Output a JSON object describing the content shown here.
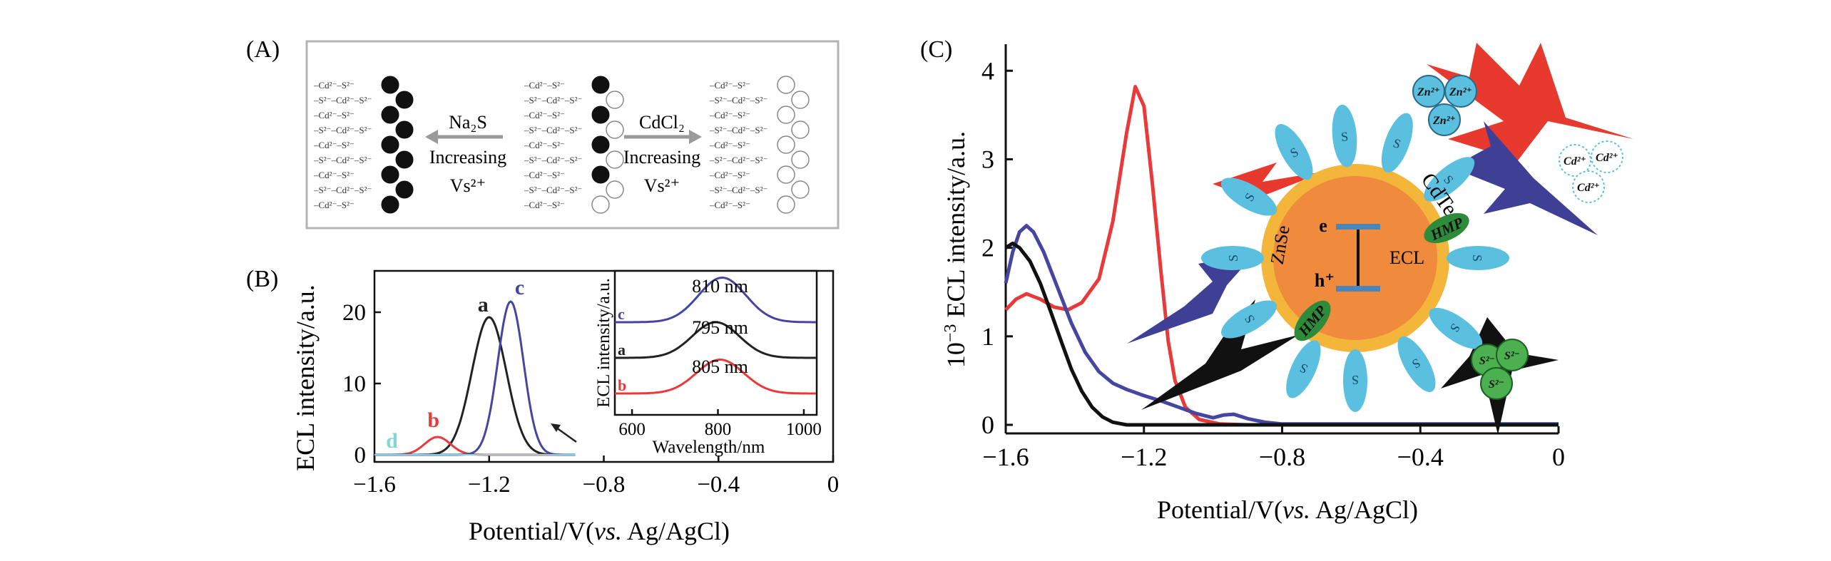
{
  "figure": {
    "panel_labels": [
      "(A)",
      "(B)",
      "(C)"
    ]
  },
  "panelA": {
    "left_reagent": "Na₂S",
    "right_reagent": "CdCl₂",
    "increasing_text": "Increasing",
    "vacancy_text": "Vs²⁺",
    "lattice_rows": [
      "–Cd²⁻–S²⁻",
      "–S²⁻–Cd²⁻–S²⁻",
      "–Cd²⁻–S²⁻",
      "–S²⁻–Cd²⁻–S²⁻",
      "–Cd²⁻–S²⁻",
      "–S²⁻–Cd²⁻–S²⁻",
      "–Cd²⁻–S²⁻",
      "–S²⁻–Cd²⁻–S²⁻",
      "–Cd²⁻–S²⁻"
    ],
    "colors": {
      "frame": "#b3b3b3",
      "arrow": "#9a9a9a",
      "text": "#222222"
    }
  },
  "chart_data": [
    {
      "id": "B-main",
      "type": "line",
      "ylabel": "ECL intensity/a.u.",
      "xlabel_parts": [
        "Potential/V(",
        "vs.",
        " Ag/AgCl)"
      ],
      "xlim": [
        -1.6,
        0
      ],
      "ylim": [
        0,
        25
      ],
      "x_ticks": [
        -1.6,
        -1.2,
        -0.8,
        -0.4,
        0
      ],
      "x_tick_labels": [
        "−1.6",
        "−1.2",
        "−0.8",
        "−0.4",
        "0"
      ],
      "y_ticks": [
        0,
        10,
        20
      ],
      "y_tick_labels": [
        "0",
        "10",
        "20"
      ],
      "series": [
        {
          "name": "a",
          "color": "#222222",
          "peak_x": -1.2,
          "peak_y": 19.3,
          "width": 0.06
        },
        {
          "name": "b",
          "color": "#e83a3a",
          "peak_x": -1.38,
          "peak_y": 2.5,
          "width": 0.045
        },
        {
          "name": "c",
          "color": "#4646a0",
          "peak_x": -1.125,
          "peak_y": 21.5,
          "width": 0.045
        },
        {
          "name": "d",
          "color": "#7fd8d8",
          "peak_x": -1.5,
          "peak_y": 0,
          "width": 0.05
        }
      ],
      "series_labels": [
        "a",
        "b",
        "c",
        "d"
      ]
    },
    {
      "id": "B-inset",
      "type": "line",
      "ylabel": "ECL intensity/a.u.",
      "xlabel": "Wavelength/nm",
      "xlim": [
        560,
        1030
      ],
      "x_ticks": [
        600,
        800,
        1000
      ],
      "x_tick_labels": [
        "600",
        "800",
        "1000"
      ],
      "annotations": [
        "810 nm",
        "795 nm",
        "805 nm"
      ],
      "series": [
        {
          "name": "c",
          "color": "#4646a0",
          "peak_x": 810,
          "offset": 2.0,
          "height": 1.25,
          "width": 55
        },
        {
          "name": "a",
          "color": "#222222",
          "peak_x": 795,
          "offset": 1.0,
          "height": 1.0,
          "width": 55
        },
        {
          "name": "b",
          "color": "#e83a3a",
          "peak_x": 805,
          "offset": 0.0,
          "height": 0.95,
          "width": 55
        }
      ],
      "series_labels": [
        "c",
        "a",
        "b"
      ]
    },
    {
      "id": "C",
      "type": "line",
      "ylabel_parts": [
        "10",
        "−3",
        " ECL intensity/a.u."
      ],
      "xlabel_parts": [
        "Potential/V(",
        "vs.",
        " Ag/AgCl)"
      ],
      "xlim": [
        -1.6,
        0
      ],
      "ylim": [
        0,
        4.3
      ],
      "x_ticks": [
        -1.6,
        -1.2,
        -0.8,
        -0.4,
        0
      ],
      "x_tick_labels": [
        "−1.6",
        "−1.2",
        "−0.8",
        "−0.4",
        "0"
      ],
      "y_ticks": [
        0,
        1,
        2,
        3,
        4
      ],
      "y_tick_labels": [
        "0",
        "1",
        "2",
        "3",
        "4"
      ],
      "series": [
        {
          "name": "red",
          "color": "#e83a3a",
          "points": [
            [
              -1.6,
              1.3
            ],
            [
              -1.57,
              1.42
            ],
            [
              -1.54,
              1.48
            ],
            [
              -1.5,
              1.42
            ],
            [
              -1.46,
              1.33
            ],
            [
              -1.42,
              1.3
            ],
            [
              -1.38,
              1.38
            ],
            [
              -1.33,
              1.65
            ],
            [
              -1.29,
              2.3
            ],
            [
              -1.25,
              3.3
            ],
            [
              -1.225,
              3.82
            ],
            [
              -1.2,
              3.6
            ],
            [
              -1.175,
              2.7
            ],
            [
              -1.15,
              1.7
            ],
            [
              -1.13,
              0.95
            ],
            [
              -1.11,
              0.5
            ],
            [
              -1.08,
              0.2
            ],
            [
              -1.04,
              0.06
            ],
            [
              -0.98,
              0.01
            ],
            [
              -0.9,
              0.0
            ],
            [
              0,
              0.0
            ]
          ]
        },
        {
          "name": "blue",
          "color": "#4646a0",
          "points": [
            [
              -1.6,
              1.6
            ],
            [
              -1.58,
              1.95
            ],
            [
              -1.56,
              2.18
            ],
            [
              -1.54,
              2.25
            ],
            [
              -1.52,
              2.18
            ],
            [
              -1.49,
              1.95
            ],
            [
              -1.45,
              1.55
            ],
            [
              -1.41,
              1.15
            ],
            [
              -1.37,
              0.82
            ],
            [
              -1.33,
              0.6
            ],
            [
              -1.29,
              0.47
            ],
            [
              -1.25,
              0.4
            ],
            [
              -1.2,
              0.33
            ],
            [
              -1.15,
              0.27
            ],
            [
              -1.1,
              0.2
            ],
            [
              -1.05,
              0.13
            ],
            [
              -1.0,
              0.08
            ],
            [
              -0.97,
              0.11
            ],
            [
              -0.94,
              0.12
            ],
            [
              -0.9,
              0.07
            ],
            [
              -0.85,
              0.03
            ],
            [
              -0.8,
              0.01
            ],
            [
              0,
              0.01
            ]
          ]
        },
        {
          "name": "black",
          "color": "#111111",
          "points": [
            [
              -1.6,
              2.0
            ],
            [
              -1.58,
              2.05
            ],
            [
              -1.56,
              2.0
            ],
            [
              -1.53,
              1.85
            ],
            [
              -1.5,
              1.6
            ],
            [
              -1.47,
              1.28
            ],
            [
              -1.44,
              0.95
            ],
            [
              -1.41,
              0.63
            ],
            [
              -1.38,
              0.38
            ],
            [
              -1.35,
              0.2
            ],
            [
              -1.32,
              0.09
            ],
            [
              -1.29,
              0.03
            ],
            [
              -1.25,
              0.0
            ],
            [
              0,
              0.0
            ]
          ]
        }
      ]
    }
  ],
  "panelC_schematic": {
    "core_label": "CdTe",
    "shell_label": "ZnSe",
    "electron_label": "e",
    "hole_label": "h⁺",
    "ecl_label": "ECL",
    "ligand_label": "HMP",
    "ligand_s_label": "S",
    "zn_label": "Zn²⁺",
    "cd_label": "Cd²⁺",
    "s_label": "S²⁻",
    "colors": {
      "core": "#f08a3c",
      "shell": "#f3b63a",
      "ligand": "#5bbfdf",
      "hmp": "#2e8b3a",
      "zn_arrow": "#e8392f",
      "cd_arrow": "#3e3f95",
      "s_arrow": "#111111",
      "s_ball": "#4caf50",
      "bar": "#4a86b8"
    }
  }
}
